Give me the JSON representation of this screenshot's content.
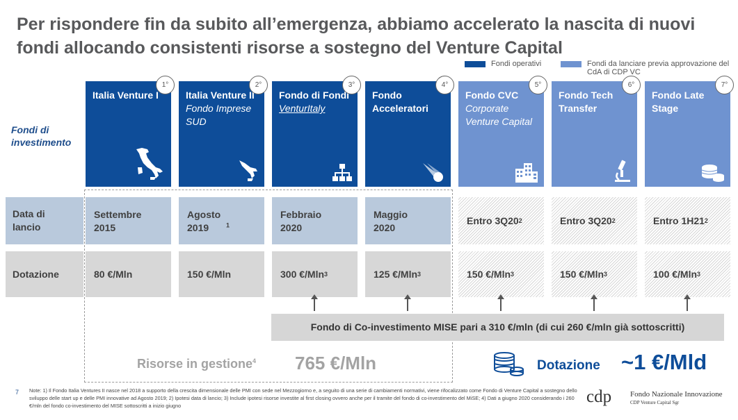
{
  "title": "Per rispondere fin da subito all’emergenza, abbiamo accelerato la nascita di nuovi fondi allocando consistenti risorse a sostegno del Venture Capital",
  "legend": {
    "operativi": "Fondi operativi",
    "da_lanciare": "Fondi da lanciare previa approvazione del CdA di CDP VC",
    "colors": {
      "operativi": "#0e4d99",
      "da_lanciare": "#6f93d0"
    }
  },
  "row_labels": {
    "fondi": "Fondi di investimento",
    "data_lancio": "Data di lancio",
    "dotazione": "Dotazione"
  },
  "funds": [
    {
      "badge": "1°",
      "name": "Italia Venture I",
      "subtitle": "",
      "icon": "italy-map-icon",
      "launch": "Settembre 2015",
      "launch_sup": "",
      "amount": "80 €/Mln",
      "amount_sup": "",
      "status": "operativo"
    },
    {
      "badge": "2°",
      "name": "Italia Venture II",
      "subtitle": "Fondo Imprese SUD",
      "icon": "south-italy-map-icon",
      "launch": "Agosto 2019",
      "launch_sup": "1",
      "amount": "150 €/Mln",
      "amount_sup": "",
      "status": "operativo"
    },
    {
      "badge": "3°",
      "name": "Fondo di Fondi",
      "subtitle": "VenturItaly",
      "icon": "hierarchy-icon",
      "launch": "Febbraio 2020",
      "launch_sup": "",
      "amount": "300 €/Mln",
      "amount_sup": "3",
      "status": "operativo"
    },
    {
      "badge": "4°",
      "name": "Fondo Acceleratori",
      "subtitle": "",
      "icon": "comet-icon",
      "launch": "Maggio 2020",
      "launch_sup": "",
      "amount": "125 €/Mln",
      "amount_sup": "3",
      "status": "operativo"
    },
    {
      "badge": "5°",
      "name": "Fondo CVC",
      "subtitle": "Corporate Venture Capital",
      "icon": "buildings-icon",
      "launch": "Entro 3Q20",
      "launch_sup": "2",
      "amount": "150 €/Mln",
      "amount_sup": "3",
      "status": "da_lanciare"
    },
    {
      "badge": "6°",
      "name": "Fondo Tech Transfer",
      "subtitle": "",
      "icon": "microscope-icon",
      "launch": "Entro 3Q20",
      "launch_sup": "2",
      "amount": "150 €/Mln",
      "amount_sup": "3",
      "status": "da_lanciare"
    },
    {
      "badge": "7°",
      "name": "Fondo Late Stage",
      "subtitle": "",
      "icon": "coins-icon",
      "launch": "Entro 1H21",
      "launch_sup": "2",
      "amount": "100 €/Mln",
      "amount_sup": "3",
      "status": "da_lanciare"
    }
  ],
  "co_investment": "Fondo di Co-investimento MISE pari a 310 €/mln (di cui 260 €/mln già sottoscritti)",
  "risorse": {
    "label": "Risorse in gestione",
    "sup": "4",
    "value": "765 €/Mln"
  },
  "dotazione_total": {
    "label": "Dotazione",
    "value": "~1 €/Mld"
  },
  "page_number": "7",
  "notes": "Note: 1) Il Fondo Italia Ventures II nasce nel 2018 a supporto della crescita dimensionale delle PMI con sede nel Mezzogiorno e, a seguito di una serie di cambiamenti normativi, viene rifocalizzato come Fondo di Venture Capital a sostegno dello sviluppo delle start up e delle PMI innovative ad Agosto 2019; 2) Ipotesi data di lancio; 3) Include ipotesi risorse investite al first closing ovvero anche per il tramite del fondo di co-investimento del MiSE; 4) Dati a giugno 2020 considerando i 260 €/mln del fondo co-investimento del MISE sottoscritti a inizio giugno",
  "logo": {
    "mark": "cdp",
    "name": "Fondo Nazionale Innovazione",
    "sub": "CDP Venture Capital Sgr"
  }
}
